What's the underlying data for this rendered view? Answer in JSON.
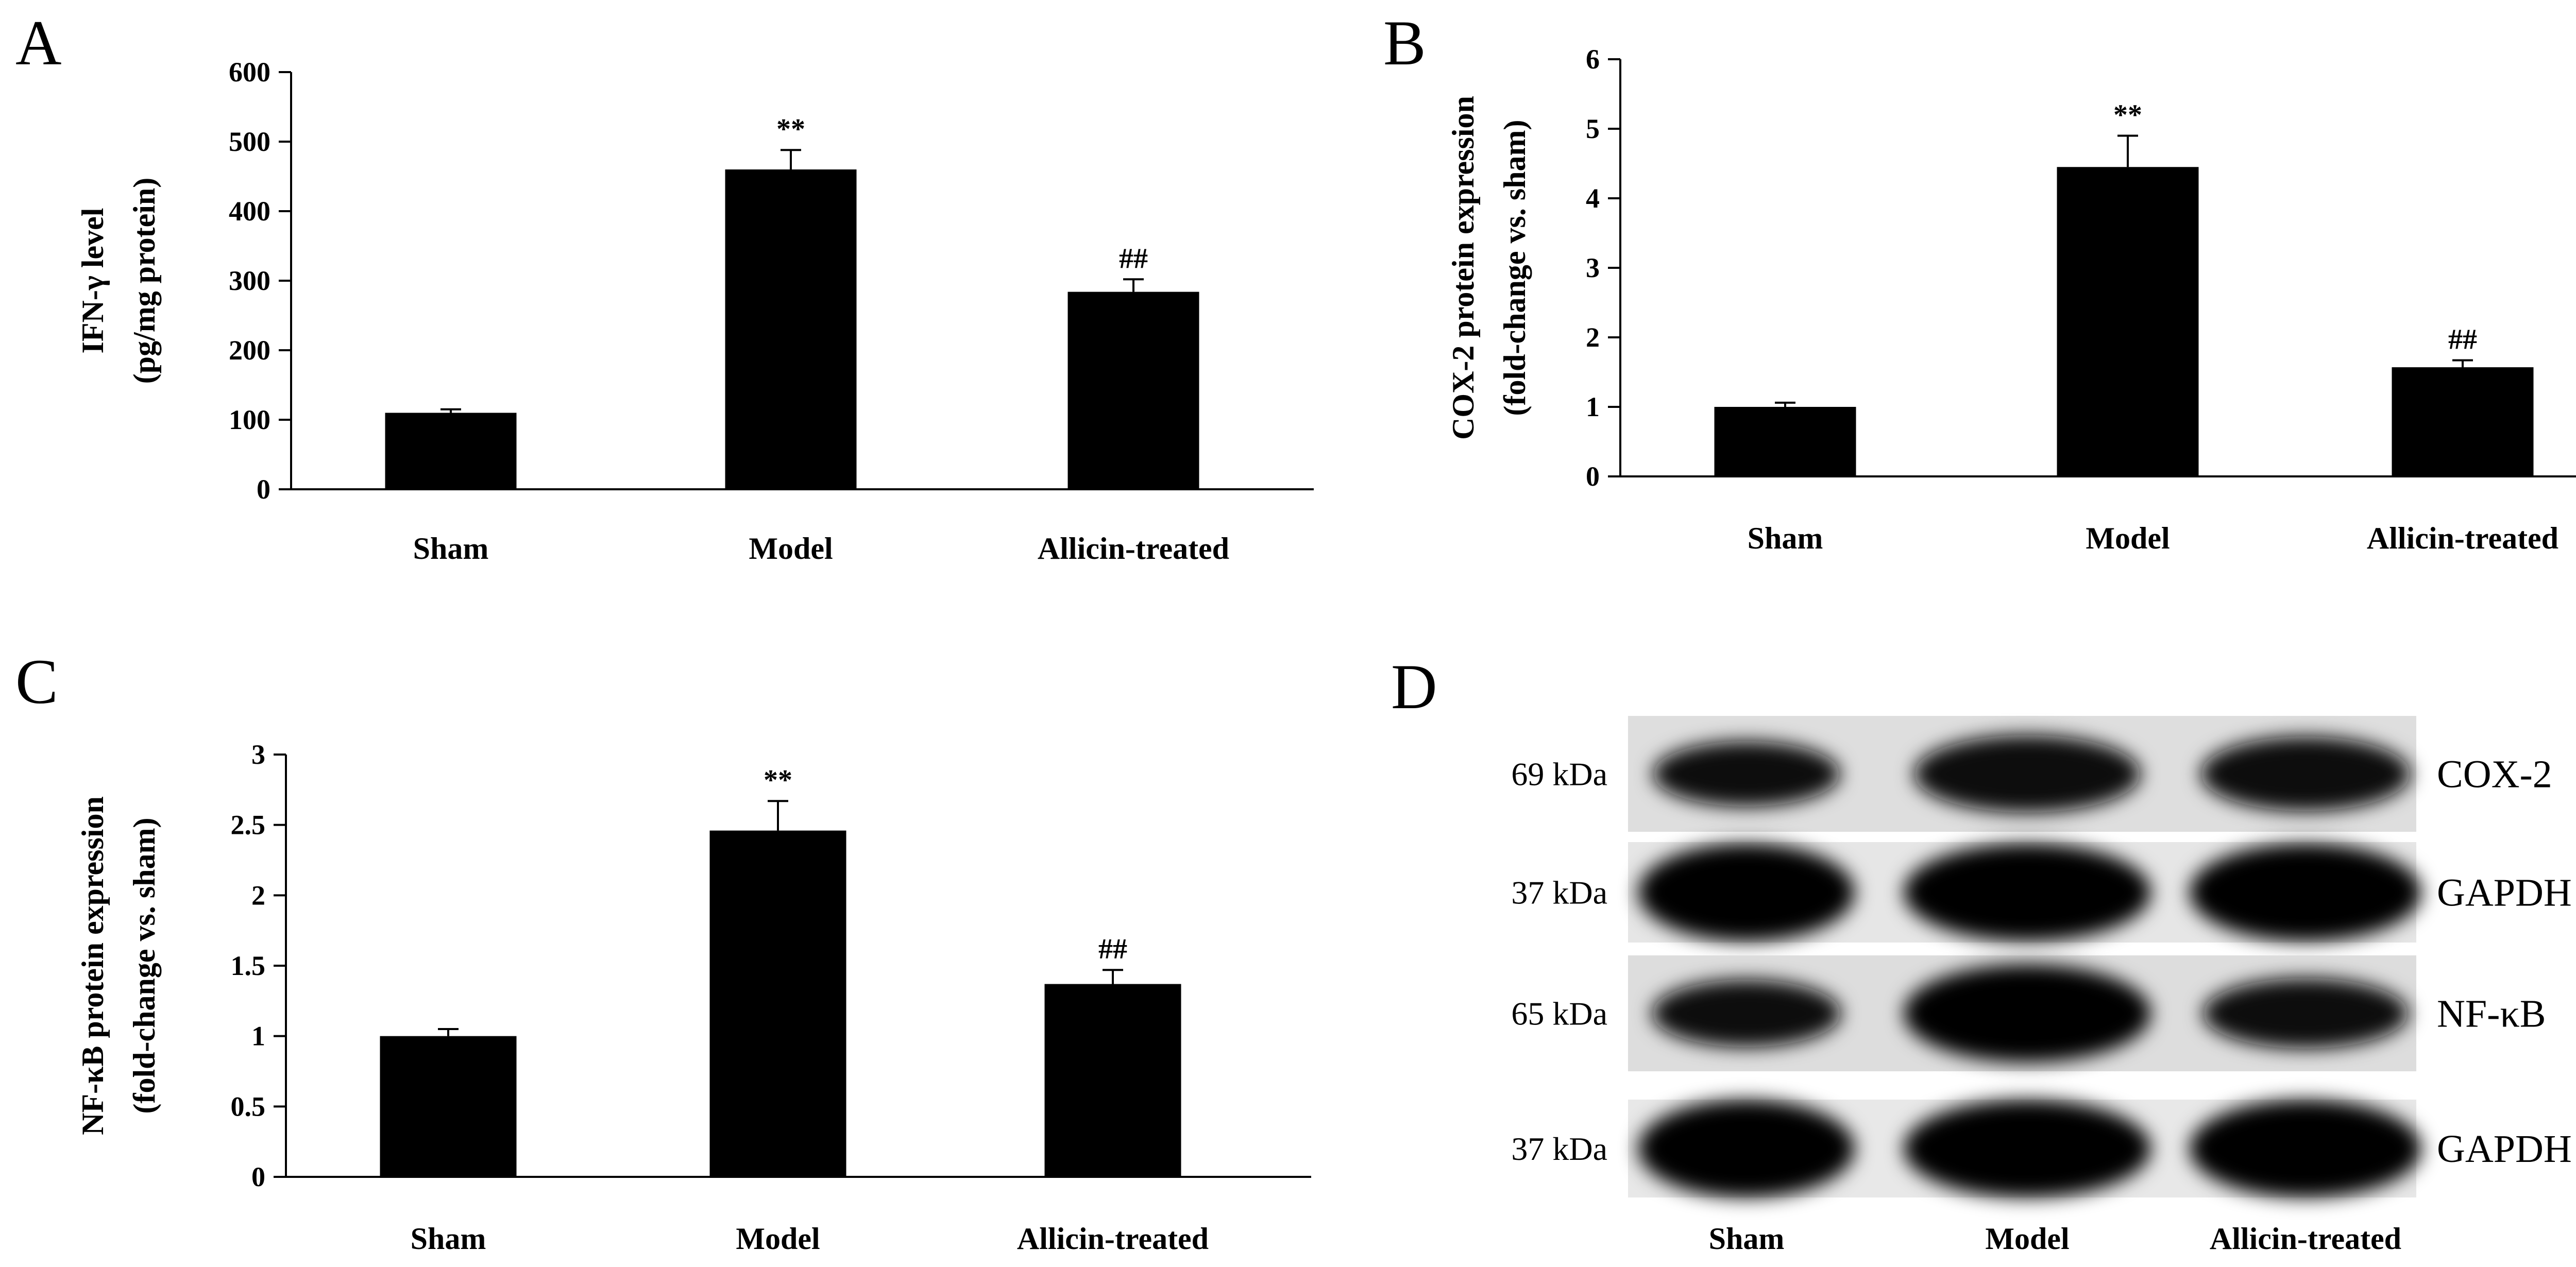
{
  "chart_data": [
    {
      "panel": "A",
      "type": "bar",
      "categories": [
        "Sham",
        "Model",
        "Allicin-treated"
      ],
      "values": [
        110,
        460,
        284
      ],
      "errors": [
        5,
        28,
        18
      ],
      "significance": [
        "",
        "**",
        "##"
      ],
      "ylabel_lines": [
        "IFN-γ level",
        "(pg/mg protein)"
      ],
      "yticks": [
        "0",
        "100",
        "200",
        "300",
        "400",
        "500",
        "600"
      ],
      "ylim": [
        0,
        600
      ]
    },
    {
      "panel": "B",
      "type": "bar",
      "categories": [
        "Sham",
        "Model",
        "Allicin-treated"
      ],
      "values": [
        1.0,
        4.45,
        1.57
      ],
      "errors": [
        0.06,
        0.45,
        0.1
      ],
      "significance": [
        "",
        "**",
        "##"
      ],
      "ylabel_lines": [
        "COX-2 protein expression",
        "(fold-change vs. sham)"
      ],
      "yticks": [
        "0",
        "1",
        "2",
        "3",
        "4",
        "5",
        "6"
      ],
      "ylim": [
        0,
        6
      ]
    },
    {
      "panel": "C",
      "type": "bar",
      "categories": [
        "Sham",
        "Model",
        "Allicin-treated"
      ],
      "values": [
        1.0,
        2.46,
        1.37
      ],
      "errors": [
        0.05,
        0.21,
        0.1
      ],
      "significance": [
        "",
        "**",
        "##"
      ],
      "ylabel_lines": [
        "NF-κB protein expression",
        "(fold-change vs. sham)"
      ],
      "yticks": [
        "0",
        "0.5",
        "1",
        "1.5",
        "2",
        "2.5",
        "3"
      ],
      "ylim": [
        0,
        3
      ]
    }
  ],
  "blot": {
    "panel": "D",
    "lanes": [
      "Sham",
      "Model",
      "Allicin-treated"
    ],
    "rows": [
      {
        "kda": "69 kDa",
        "protein": "COX-2",
        "intensity": [
          0.55,
          0.72,
          0.68
        ],
        "background": "#dedede"
      },
      {
        "kda": "37 kDa",
        "protein": "GAPDH",
        "intensity": [
          1.0,
          1.0,
          1.0
        ],
        "background": "#e6e6e6"
      },
      {
        "kda": "65 kDa",
        "protein": "NF-κB",
        "intensity": [
          0.58,
          1.0,
          0.62
        ],
        "background": "#dddddd"
      },
      {
        "kda": "37 kDa",
        "protein": "GAPDH",
        "intensity": [
          1.0,
          1.0,
          1.0
        ],
        "background": "#e8e8e8"
      }
    ]
  },
  "panel_letters": [
    "A",
    "B",
    "C",
    "D"
  ]
}
